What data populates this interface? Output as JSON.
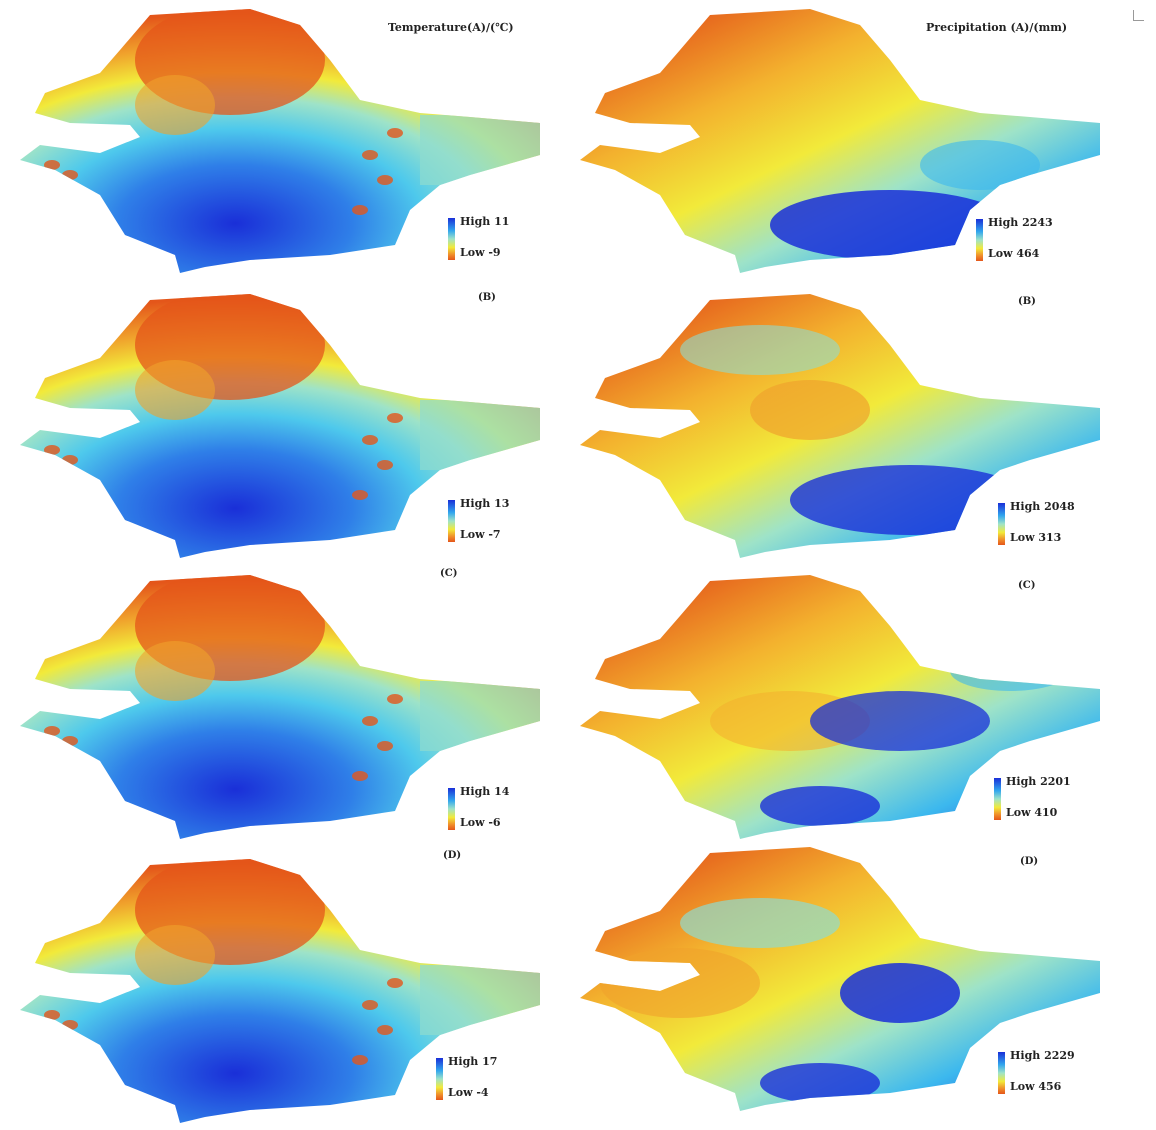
{
  "titles": {
    "temperature": "Temperature(A)/(℃)",
    "precipitation": "Precipitation (A)/(mm)"
  },
  "panel_labels": [
    "(B)",
    "(C)",
    "(D)"
  ],
  "color_scales": {
    "high_color": "#1a2fd8",
    "mid_color": "#9ee3c8",
    "yellow_color": "#f2ea3a",
    "low_color": "#e4561a"
  },
  "rows": [
    {
      "temperature": {
        "high": "High 11",
        "low": "Low -9"
      },
      "precipitation": {
        "high": "High 2243",
        "low": "Low 464"
      }
    },
    {
      "temperature": {
        "high": "High 13",
        "low": "Low -7"
      },
      "precipitation": {
        "high": "High 2048",
        "low": "Low 313"
      }
    },
    {
      "temperature": {
        "high": "High 14",
        "low": "Low -6"
      },
      "precipitation": {
        "high": "High 2201",
        "low": "Low 410"
      }
    },
    {
      "temperature": {
        "high": "High 17",
        "low": "Low -4"
      },
      "precipitation": {
        "high": "High 2229",
        "low": "Low 456"
      }
    }
  ]
}
